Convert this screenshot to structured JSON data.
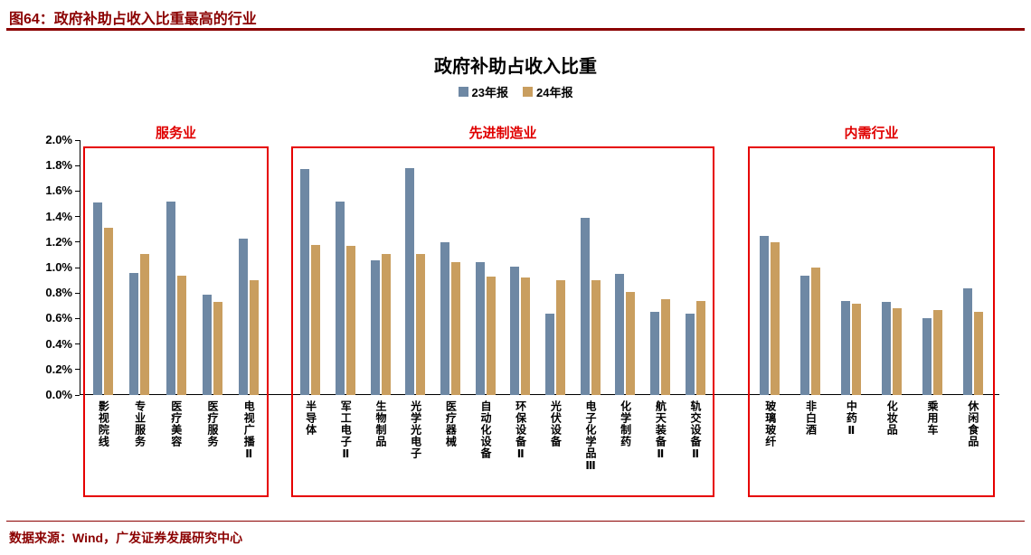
{
  "header": {
    "figure_title": "图64：政府补助占收入比重最高的行业"
  },
  "footer": {
    "source": "数据来源：Wind，广发证券发展研究中心"
  },
  "colors": {
    "maroon_accent": "#8B0000",
    "group_red": "#E60000",
    "series_23": "#6E88A4",
    "series_24": "#C99E5F"
  },
  "chart_data": {
    "type": "bar",
    "title": "政府补助占收入比重",
    "legend": [
      "23年报",
      "24年报"
    ],
    "series_colors": [
      "#6E88A4",
      "#C99E5F"
    ],
    "ylim": [
      0,
      2.0
    ],
    "ytick_step": 0.2,
    "grid": false,
    "legend_position": "top-center",
    "ylabel": "",
    "xlabel": "",
    "groups": [
      {
        "name": "服务业",
        "categories": [
          "影视院线",
          "专业服务",
          "医疗美容",
          "医疗服务",
          "电视广播Ⅱ"
        ],
        "series": [
          {
            "name": "23年报",
            "values": [
              1.51,
              0.96,
              1.52,
              0.79,
              1.23
            ]
          },
          {
            "name": "24年报",
            "values": [
              1.31,
              1.11,
              0.94,
              0.73,
              0.9
            ]
          }
        ]
      },
      {
        "name": "先进制造业",
        "categories": [
          "半导体",
          "军工电子Ⅱ",
          "生物制品",
          "光学光电子",
          "医疗器械",
          "自动化设备",
          "环保设备Ⅱ",
          "光伏设备",
          "电子化学品Ⅲ",
          "化学制药",
          "航天装备Ⅱ",
          "轨交设备Ⅱ"
        ],
        "series": [
          {
            "name": "23年报",
            "values": [
              1.77,
              1.52,
              1.06,
              1.78,
              1.2,
              1.04,
              1.01,
              0.64,
              1.39,
              0.95,
              0.65,
              0.64
            ]
          },
          {
            "name": "24年报",
            "values": [
              1.18,
              1.17,
              1.11,
              1.11,
              1.04,
              0.93,
              0.92,
              0.9,
              0.9,
              0.81,
              0.75,
              0.74
            ]
          }
        ]
      },
      {
        "name": "内需行业",
        "categories": [
          "玻璃玻纤",
          "非白酒",
          "中药Ⅱ",
          "化妆品",
          "乘用车",
          "休闲食品"
        ],
        "series": [
          {
            "name": "23年报",
            "values": [
              1.25,
              0.94,
              0.74,
              0.73,
              0.6,
              0.84
            ]
          },
          {
            "name": "24年报",
            "values": [
              1.2,
              1.0,
              0.72,
              0.68,
              0.67,
              0.65
            ]
          }
        ]
      }
    ]
  }
}
